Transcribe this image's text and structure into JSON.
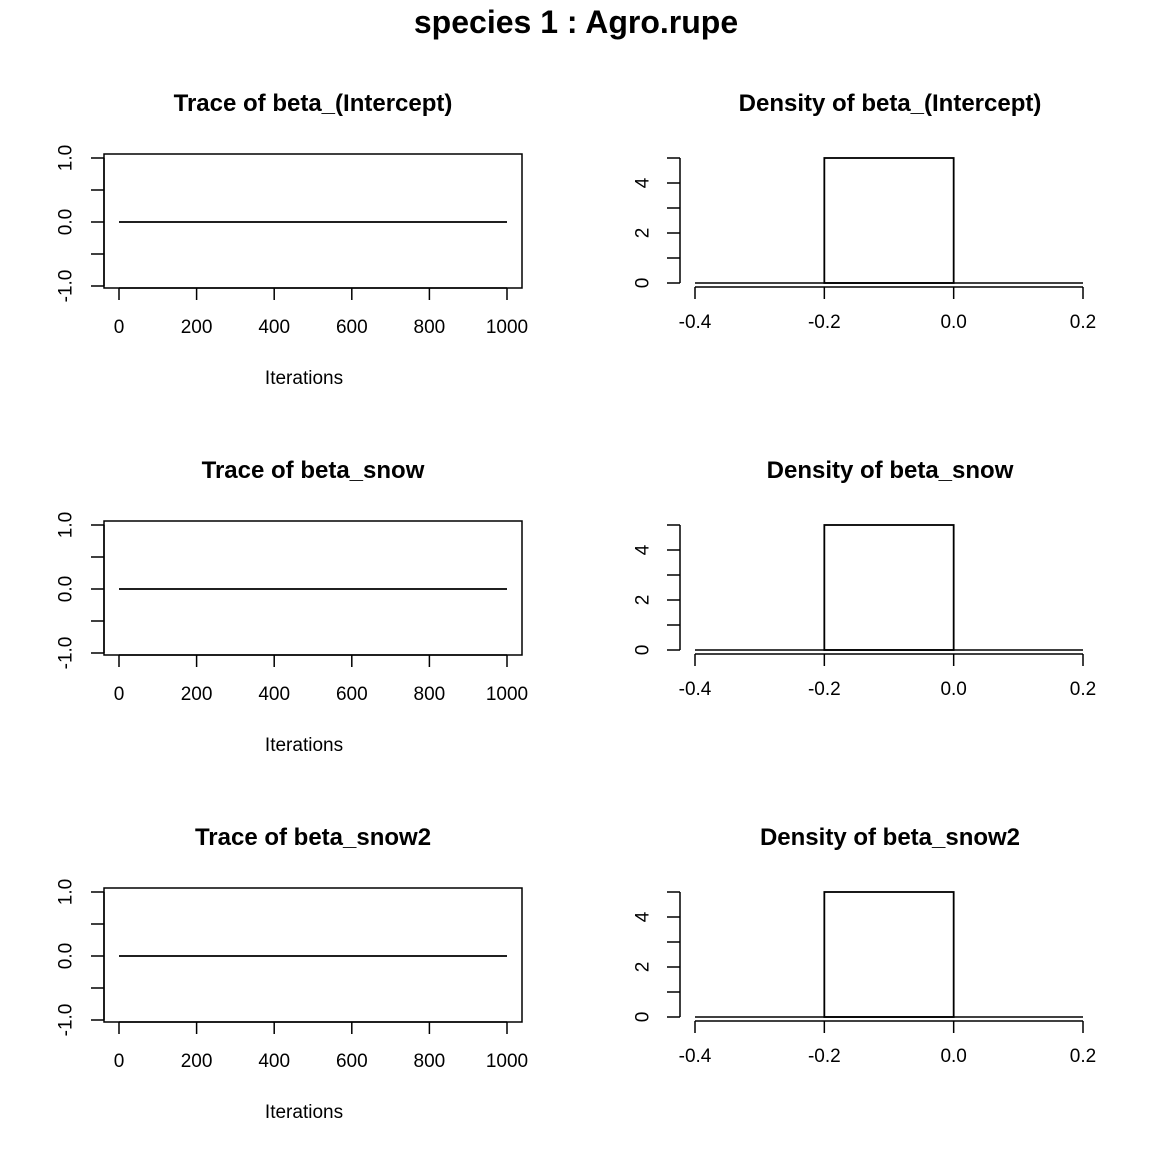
{
  "figure_title": "species 1 : Agro.rupe",
  "chart_data": [
    {
      "type": "line",
      "title": "Trace of beta_(Intercept)",
      "xlabel": "Iterations",
      "ylabel": "",
      "xlim": [
        -40,
        1040
      ],
      "ylim": [
        -1.0,
        1.0
      ],
      "xticks": [
        "0",
        "200",
        "400",
        "600",
        "800",
        "1000"
      ],
      "xtick_values": [
        0,
        200,
        400,
        600,
        800,
        1000
      ],
      "yticks": [
        "-1.0",
        "0.0",
        "1.0"
      ],
      "ytick_values": [
        -1.0,
        0.0,
        1.0
      ],
      "yminor_values": [
        -0.5,
        0.5
      ],
      "series": [
        {
          "x": [
            0,
            1000
          ],
          "values": [
            0,
            0
          ]
        }
      ]
    },
    {
      "type": "bar",
      "title": "Density of beta_(Intercept)",
      "xlabel": "",
      "ylabel": "",
      "xlim": [
        -0.4,
        0.2
      ],
      "ylim": [
        0,
        5
      ],
      "xticks": [
        "-0.4",
        "-0.2",
        "0.0",
        "0.2"
      ],
      "xtick_values": [
        -0.4,
        -0.2,
        0.0,
        0.2
      ],
      "yticks": [
        "0",
        "2",
        "4"
      ],
      "ytick_values": [
        0,
        2,
        4
      ],
      "yminor_values": [
        1,
        3,
        5
      ],
      "bins": [
        {
          "x0": -0.2,
          "x1": 0.0,
          "density": 5
        }
      ]
    },
    {
      "type": "line",
      "title": "Trace of beta_snow",
      "xlabel": "Iterations",
      "ylabel": "",
      "xlim": [
        -40,
        1040
      ],
      "ylim": [
        -1.0,
        1.0
      ],
      "xticks": [
        "0",
        "200",
        "400",
        "600",
        "800",
        "1000"
      ],
      "xtick_values": [
        0,
        200,
        400,
        600,
        800,
        1000
      ],
      "yticks": [
        "-1.0",
        "0.0",
        "1.0"
      ],
      "ytick_values": [
        -1.0,
        0.0,
        1.0
      ],
      "yminor_values": [
        -0.5,
        0.5
      ],
      "series": [
        {
          "x": [
            0,
            1000
          ],
          "values": [
            0,
            0
          ]
        }
      ]
    },
    {
      "type": "bar",
      "title": "Density of beta_snow",
      "xlabel": "",
      "ylabel": "",
      "xlim": [
        -0.4,
        0.2
      ],
      "ylim": [
        0,
        5
      ],
      "xticks": [
        "-0.4",
        "-0.2",
        "0.0",
        "0.2"
      ],
      "xtick_values": [
        -0.4,
        -0.2,
        0.0,
        0.2
      ],
      "yticks": [
        "0",
        "2",
        "4"
      ],
      "ytick_values": [
        0,
        2,
        4
      ],
      "yminor_values": [
        1,
        3,
        5
      ],
      "bins": [
        {
          "x0": -0.2,
          "x1": 0.0,
          "density": 5
        }
      ]
    },
    {
      "type": "line",
      "title": "Trace of beta_snow2",
      "xlabel": "Iterations",
      "ylabel": "",
      "xlim": [
        -40,
        1040
      ],
      "ylim": [
        -1.0,
        1.0
      ],
      "xticks": [
        "0",
        "200",
        "400",
        "600",
        "800",
        "1000"
      ],
      "xtick_values": [
        0,
        200,
        400,
        600,
        800,
        1000
      ],
      "yticks": [
        "-1.0",
        "0.0",
        "1.0"
      ],
      "ytick_values": [
        -1.0,
        0.0,
        1.0
      ],
      "yminor_values": [
        -0.5,
        0.5
      ],
      "series": [
        {
          "x": [
            0,
            1000
          ],
          "values": [
            0,
            0
          ]
        }
      ]
    },
    {
      "type": "bar",
      "title": "Density of beta_snow2",
      "xlabel": "",
      "ylabel": "",
      "xlim": [
        -0.4,
        0.2
      ],
      "ylim": [
        0,
        5
      ],
      "xticks": [
        "-0.4",
        "-0.2",
        "0.0",
        "0.2"
      ],
      "xtick_values": [
        -0.4,
        -0.2,
        0.0,
        0.2
      ],
      "yticks": [
        "0",
        "2",
        "4"
      ],
      "ytick_values": [
        0,
        2,
        4
      ],
      "yminor_values": [
        1,
        3,
        5
      ],
      "bins": [
        {
          "x0": -0.2,
          "x1": 0.0,
          "density": 5
        }
      ]
    }
  ]
}
